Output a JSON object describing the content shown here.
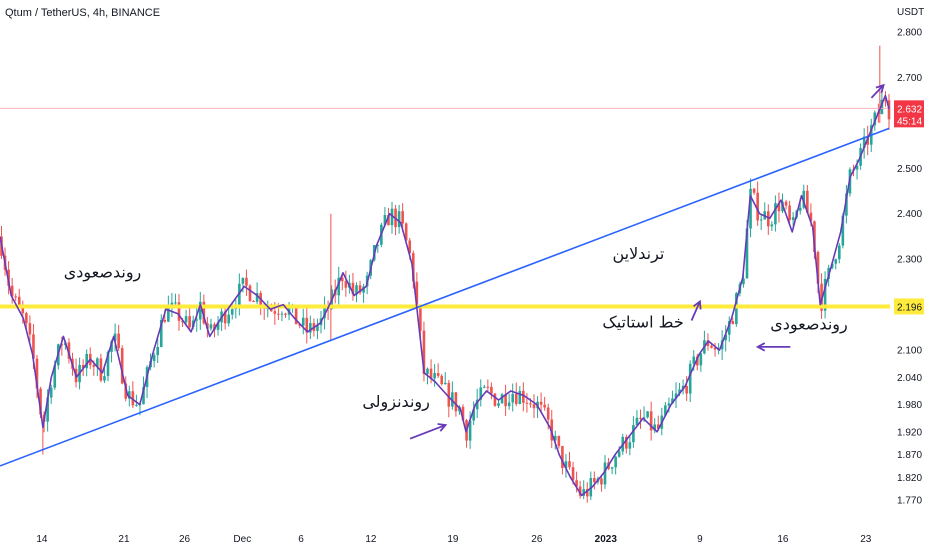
{
  "header": {
    "title": "Qtum / TetherUS, 4h, BINANCE"
  },
  "chart_data": {
    "type": "candlestick",
    "symbol": "Qtum / TetherUS",
    "interval": "4h",
    "exchange": "BINANCE",
    "currency_label": "USDT",
    "y_ticks": [
      2.8,
      2.7,
      2.5,
      2.4,
      2.3,
      2.1,
      2.04,
      1.98,
      1.92,
      1.87,
      1.82,
      1.77
    ],
    "y_tick_labels": [
      "2.800",
      "2.700",
      "2.500",
      "2.400",
      "2.300",
      "2.100",
      "2.040",
      "1.980",
      "1.920",
      "1.870",
      "1.820",
      "1.770"
    ],
    "x_ticks": [
      {
        "label": "14",
        "pos": 0.045
      },
      {
        "label": "21",
        "pos": 0.133
      },
      {
        "label": "26",
        "pos": 0.198
      },
      {
        "label": "Dec",
        "pos": 0.26
      },
      {
        "label": "6",
        "pos": 0.323
      },
      {
        "label": "12",
        "pos": 0.398
      },
      {
        "label": "19",
        "pos": 0.486
      },
      {
        "label": "26",
        "pos": 0.576
      },
      {
        "label": "2023",
        "pos": 0.65
      },
      {
        "label": "9",
        "pos": 0.751
      },
      {
        "label": "16",
        "pos": 0.84
      },
      {
        "label": "23",
        "pos": 0.929
      }
    ],
    "last_price": {
      "value": 2.632,
      "label": "2.632",
      "countdown": "45:14",
      "color": "#f23645"
    },
    "static_level": {
      "value": 2.196,
      "label": "2.196",
      "color": "#ffeb3b"
    },
    "trendline": {
      "from": [
        0.0,
        1.845
      ],
      "to": [
        0.954,
        2.588
      ],
      "color": "#2962ff"
    },
    "path": [
      [
        0.0,
        2.35
      ],
      [
        0.012,
        2.22
      ],
      [
        0.025,
        2.17
      ],
      [
        0.035,
        2.09
      ],
      [
        0.046,
        1.93
      ],
      [
        0.055,
        2.04
      ],
      [
        0.068,
        2.13
      ],
      [
        0.082,
        2.04
      ],
      [
        0.097,
        2.08
      ],
      [
        0.11,
        2.05
      ],
      [
        0.122,
        2.13
      ],
      [
        0.137,
        2.0
      ],
      [
        0.15,
        1.98
      ],
      [
        0.165,
        2.1
      ],
      [
        0.178,
        2.19
      ],
      [
        0.191,
        2.18
      ],
      [
        0.205,
        2.14
      ],
      [
        0.215,
        2.2
      ],
      [
        0.225,
        2.13
      ],
      [
        0.237,
        2.17
      ],
      [
        0.248,
        2.2
      ],
      [
        0.262,
        2.24
      ],
      [
        0.276,
        2.22
      ],
      [
        0.29,
        2.19
      ],
      [
        0.304,
        2.2
      ],
      [
        0.316,
        2.17
      ],
      [
        0.33,
        2.14
      ],
      [
        0.344,
        2.16
      ],
      [
        0.356,
        2.21
      ],
      [
        0.368,
        2.27
      ],
      [
        0.38,
        2.22
      ],
      [
        0.393,
        2.24
      ],
      [
        0.404,
        2.33
      ],
      [
        0.418,
        2.4
      ],
      [
        0.43,
        2.38
      ],
      [
        0.442,
        2.29
      ],
      [
        0.455,
        2.05
      ],
      [
        0.467,
        2.03
      ],
      [
        0.48,
        2.0
      ],
      [
        0.494,
        1.97
      ],
      [
        0.5,
        1.92
      ],
      [
        0.51,
        1.98
      ],
      [
        0.522,
        2.01
      ],
      [
        0.535,
        1.99
      ],
      [
        0.548,
        2.01
      ],
      [
        0.562,
        2.0
      ],
      [
        0.576,
        1.98
      ],
      [
        0.59,
        1.93
      ],
      [
        0.6,
        1.87
      ],
      [
        0.612,
        1.82
      ],
      [
        0.624,
        1.78
      ],
      [
        0.636,
        1.8
      ],
      [
        0.648,
        1.83
      ],
      [
        0.66,
        1.87
      ],
      [
        0.675,
        1.91
      ],
      [
        0.69,
        1.95
      ],
      [
        0.705,
        1.92
      ],
      [
        0.72,
        1.98
      ],
      [
        0.735,
        2.02
      ],
      [
        0.75,
        2.09
      ],
      [
        0.76,
        2.12
      ],
      [
        0.772,
        2.1
      ],
      [
        0.785,
        2.17
      ],
      [
        0.797,
        2.26
      ],
      [
        0.805,
        2.44
      ],
      [
        0.815,
        2.4
      ],
      [
        0.826,
        2.39
      ],
      [
        0.838,
        2.43
      ],
      [
        0.85,
        2.36
      ],
      [
        0.86,
        2.44
      ],
      [
        0.872,
        2.37
      ],
      [
        0.88,
        2.2
      ],
      [
        0.89,
        2.27
      ],
      [
        0.902,
        2.36
      ],
      [
        0.912,
        2.48
      ],
      [
        0.922,
        2.52
      ],
      [
        0.932,
        2.57
      ],
      [
        0.942,
        2.62
      ],
      [
        0.95,
        2.66
      ],
      [
        0.954,
        2.63
      ]
    ],
    "annotations": [
      {
        "text": "روندصعودی",
        "x": 0.11,
        "y": 2.26
      },
      {
        "text": "ترندلاین",
        "x": 0.685,
        "y": 2.3
      },
      {
        "text": "خط استاتیک",
        "x": 0.69,
        "y": 2.15
      },
      {
        "text": "روندصعودی",
        "x": 0.868,
        "y": 2.145
      },
      {
        "text": "روندنزولی",
        "x": 0.425,
        "y": 1.975
      }
    ],
    "arrows": [
      {
        "from": [
          0.44,
          1.905
        ],
        "to": [
          0.478,
          1.935
        ]
      },
      {
        "from": [
          0.742,
          2.165
        ],
        "to": [
          0.751,
          2.207
        ]
      },
      {
        "from": [
          0.848,
          2.107
        ],
        "to": [
          0.813,
          2.107
        ]
      },
      {
        "from": [
          0.935,
          2.655
        ],
        "to": [
          0.948,
          2.683
        ]
      }
    ],
    "colors": {
      "up": "#26a69a",
      "down": "#ef5350",
      "path": "#673ab7",
      "grid": "#f0f3fa"
    }
  }
}
